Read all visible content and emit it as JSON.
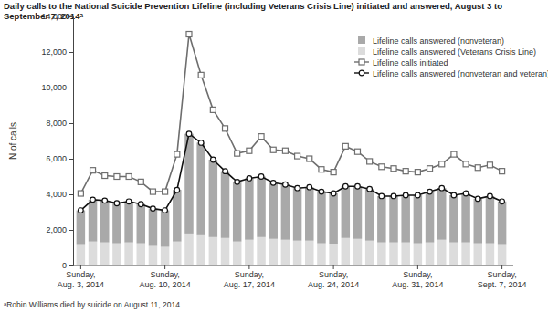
{
  "chart_data": {
    "type": "bar",
    "title": "Daily calls to the National Suicide Prevention Lifeline (including Veterans Crisis Line) initiated and answered, August 3 to September 7, 2014ᵃ",
    "ylabel": "N of calls",
    "footnote": "ᵃRobin Williams died by suicide on August 11, 2014.",
    "categories": [
      "Sunday, Aug. 3, 2014",
      null,
      null,
      null,
      null,
      null,
      null,
      "Sunday, Aug. 10, 2014",
      null,
      null,
      null,
      null,
      null,
      null,
      "Sunday, Aug. 17, 2014",
      null,
      null,
      null,
      null,
      null,
      null,
      "Sunday, Aug. 24, 2014",
      null,
      null,
      null,
      null,
      null,
      null,
      "Sunday, Aug. 31, 2014",
      null,
      null,
      null,
      null,
      null,
      null,
      "Sunday, Sept. 7, 2014"
    ],
    "stacked": true,
    "legend": "upper right",
    "grid": false,
    "ylim": [
      0,
      14000
    ],
    "yticks": [
      0,
      {
        "value": 2000,
        "label": "2,000"
      },
      {
        "value": 4000,
        "label": "4,000"
      },
      {
        "value": 6000,
        "label": "6,000"
      },
      {
        "value": 8000,
        "label": "8,000"
      },
      {
        "value": 10000,
        "label": "10,000"
      },
      {
        "value": 12000,
        "label": "12,000"
      },
      {
        "value": 14000,
        "label": "14,000"
      }
    ],
    "series": [
      {
        "name": "Lifeline calls answered (nonveteran)",
        "type": "bar",
        "color": "#a9a9a9",
        "marker": "square",
        "values": [
          1950,
          2350,
          2350,
          2250,
          2300,
          2200,
          2100,
          2050,
          2900,
          5600,
          5200,
          4350,
          3750,
          3350,
          3450,
          3400,
          3150,
          3100,
          2950,
          3000,
          2900,
          2850,
          2900,
          2950,
          2900,
          2600,
          2600,
          2650,
          2700,
          2850,
          2900,
          2650,
          2750,
          2500,
          2650,
          2450
        ]
      },
      {
        "name": "Lifeline calls answered (Veterans Crisis Line)",
        "type": "bar",
        "color": "#dcdcdc",
        "marker": "square",
        "values": [
          1150,
          1350,
          1300,
          1250,
          1300,
          1250,
          1100,
          1050,
          1350,
          1800,
          1700,
          1600,
          1550,
          1350,
          1450,
          1600,
          1500,
          1450,
          1400,
          1400,
          1250,
          1200,
          1550,
          1500,
          1400,
          1300,
          1300,
          1300,
          1250,
          1300,
          1450,
          1300,
          1300,
          1250,
          1250,
          1150
        ]
      },
      {
        "name": "Lifeline calls initiated",
        "type": "line",
        "color": "#6e6e6e",
        "marker": "square",
        "line_style": "solid",
        "values": [
          4050,
          5350,
          5050,
          5000,
          5000,
          4700,
          4150,
          4150,
          6250,
          13000,
          10700,
          8750,
          7700,
          6300,
          6450,
          7250,
          6500,
          6450,
          6150,
          6000,
          5400,
          5250,
          6700,
          6400,
          5850,
          5550,
          5450,
          5300,
          5250,
          5450,
          5700,
          6250,
          5700,
          5500,
          5650,
          5300
        ]
      },
      {
        "name": "Lifeline calls answered (nonveteran and veteran)",
        "type": "line",
        "color": "#111111",
        "marker": "circle",
        "line_style": "solid",
        "values": [
          3100,
          3700,
          3650,
          3500,
          3600,
          3450,
          3200,
          3100,
          4250,
          7400,
          6900,
          5950,
          5300,
          4700,
          4900,
          5000,
          4650,
          4550,
          4350,
          4400,
          4150,
          4050,
          4450,
          4450,
          4300,
          3900,
          3900,
          3950,
          3950,
          4150,
          4350,
          3950,
          4050,
          3750,
          3900,
          3600
        ]
      }
    ]
  }
}
